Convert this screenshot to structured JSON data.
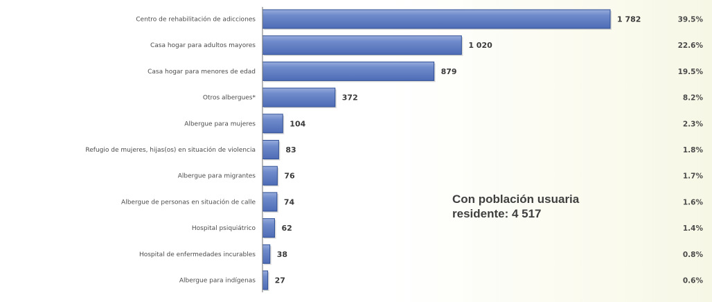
{
  "chart_data": {
    "type": "bar",
    "orientation": "horizontal",
    "categories": [
      "Centro de rehabilitación de adicciones",
      "Casa hogar para adultos mayores",
      "Casa hogar para menores de edad",
      "Otros albergues*",
      "Albergue para mujeres",
      "Refugio de mujeres, hijas(os) en situación de violencia",
      "Albergue para migrantes",
      "Albergue de personas en situación de calle",
      "Hospital psiquiátrico",
      "Hospital de enfermedades incurables",
      "Albergue para indígenas"
    ],
    "values": [
      1782,
      1020,
      879,
      372,
      104,
      83,
      76,
      74,
      62,
      38,
      27
    ],
    "value_labels": [
      "1 782",
      "1 020",
      "879",
      "372",
      "104",
      "83",
      "76",
      "74",
      "62",
      "38",
      "27"
    ],
    "percentages": [
      "39.5%",
      "22.6%",
      "19.5%",
      "8.2%",
      "2.3%",
      "1.8%",
      "1.7%",
      "1.6%",
      "1.4%",
      "0.8%",
      "0.6%"
    ],
    "xlim": [
      0,
      1782
    ],
    "grid": false,
    "legend": "none",
    "bar_color": "#5f7fc6",
    "annotation": {
      "line1": "Con población usuaria",
      "line2": "residente: 4 517"
    }
  }
}
